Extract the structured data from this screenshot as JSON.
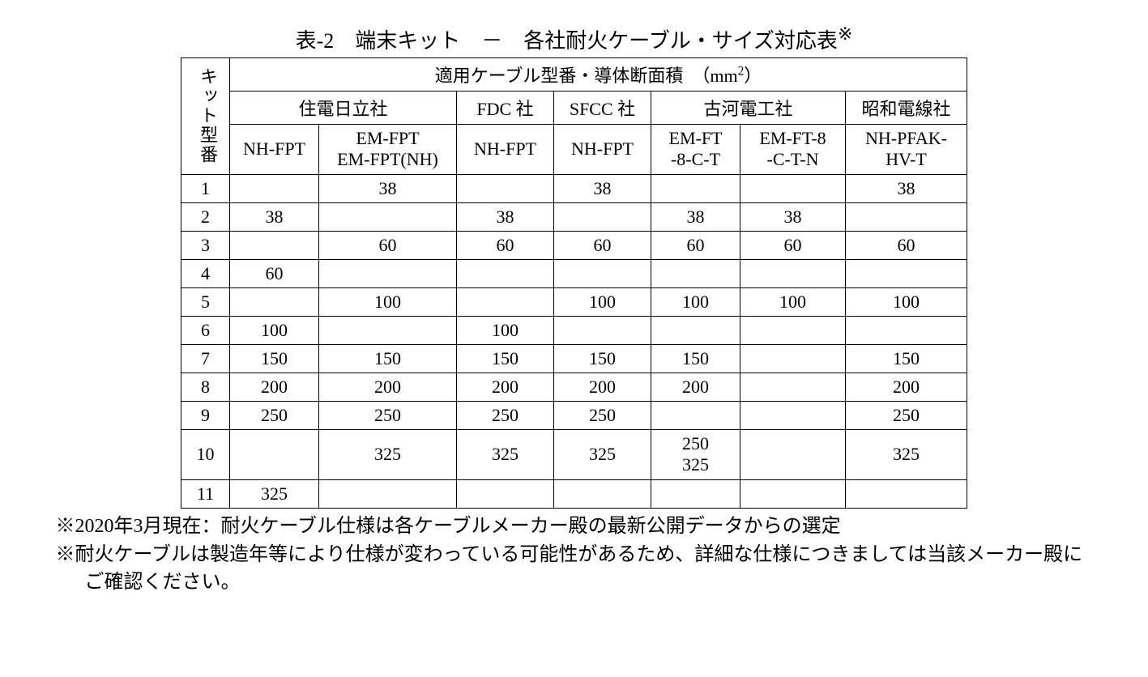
{
  "title": "表-2　端末キット　－　各社耐火ケーブル・サイズ対応表",
  "title_mark": "※",
  "header": {
    "kit_label": "キット型番",
    "group_label_before": "適用ケーブル型番・導体断面積　（mm",
    "group_label_exp": "2",
    "group_label_after": "）",
    "maker_sumiden": "住電日立社",
    "maker_fdc": "FDC 社",
    "maker_sfcc": "SFCC 社",
    "maker_furukawa": "古河電工社",
    "maker_showa": "昭和電線社",
    "col_a": "NH-FPT",
    "col_b": "EM-FPT\nEM-FPT(NH)",
    "col_c": "NH-FPT",
    "col_d": "NH-FPT",
    "col_e": "EM-FT\n-8-C-T",
    "col_f": "EM-FT-8\n-C-T-N",
    "col_g": "NH-PFAK-\nHV-T"
  },
  "rows": [
    {
      "k": "1",
      "a": "",
      "b": "38",
      "c": "",
      "d": "38",
      "e": "",
      "f": "",
      "g": "38"
    },
    {
      "k": "2",
      "a": "38",
      "b": "",
      "c": "38",
      "d": "",
      "e": "38",
      "f": "38",
      "g": ""
    },
    {
      "k": "3",
      "a": "",
      "b": "60",
      "c": "60",
      "d": "60",
      "e": "60",
      "f": "60",
      "g": "60"
    },
    {
      "k": "4",
      "a": "60",
      "b": "",
      "c": "",
      "d": "",
      "e": "",
      "f": "",
      "g": ""
    },
    {
      "k": "5",
      "a": "",
      "b": "100",
      "c": "",
      "d": "100",
      "e": "100",
      "f": "100",
      "g": "100"
    },
    {
      "k": "6",
      "a": "100",
      "b": "",
      "c": "100",
      "d": "",
      "e": "",
      "f": "",
      "g": ""
    },
    {
      "k": "7",
      "a": "150",
      "b": "150",
      "c": "150",
      "d": "150",
      "e": "150",
      "f": "",
      "g": "150"
    },
    {
      "k": "8",
      "a": "200",
      "b": "200",
      "c": "200",
      "d": "200",
      "e": "200",
      "f": "",
      "g": "200"
    },
    {
      "k": "9",
      "a": "250",
      "b": "250",
      "c": "250",
      "d": "250",
      "e": "",
      "f": "",
      "g": "250"
    },
    {
      "k": "10",
      "a": "",
      "b": "325",
      "c": "325",
      "d": "325",
      "e": "250\n325",
      "f": "",
      "g": "325"
    },
    {
      "k": "11",
      "a": "325",
      "b": "",
      "c": "",
      "d": "",
      "e": "",
      "f": "",
      "g": ""
    }
  ],
  "footnotes": {
    "n1": "※2020年3月現在：耐火ケーブル仕様は各ケーブルメーカー殿の最新公開データからの選定",
    "n2": "※耐火ケーブルは製造年等により仕様が変わっている可能性があるため、詳細な仕様につきましては当該メーカー殿にご確認ください。"
  }
}
